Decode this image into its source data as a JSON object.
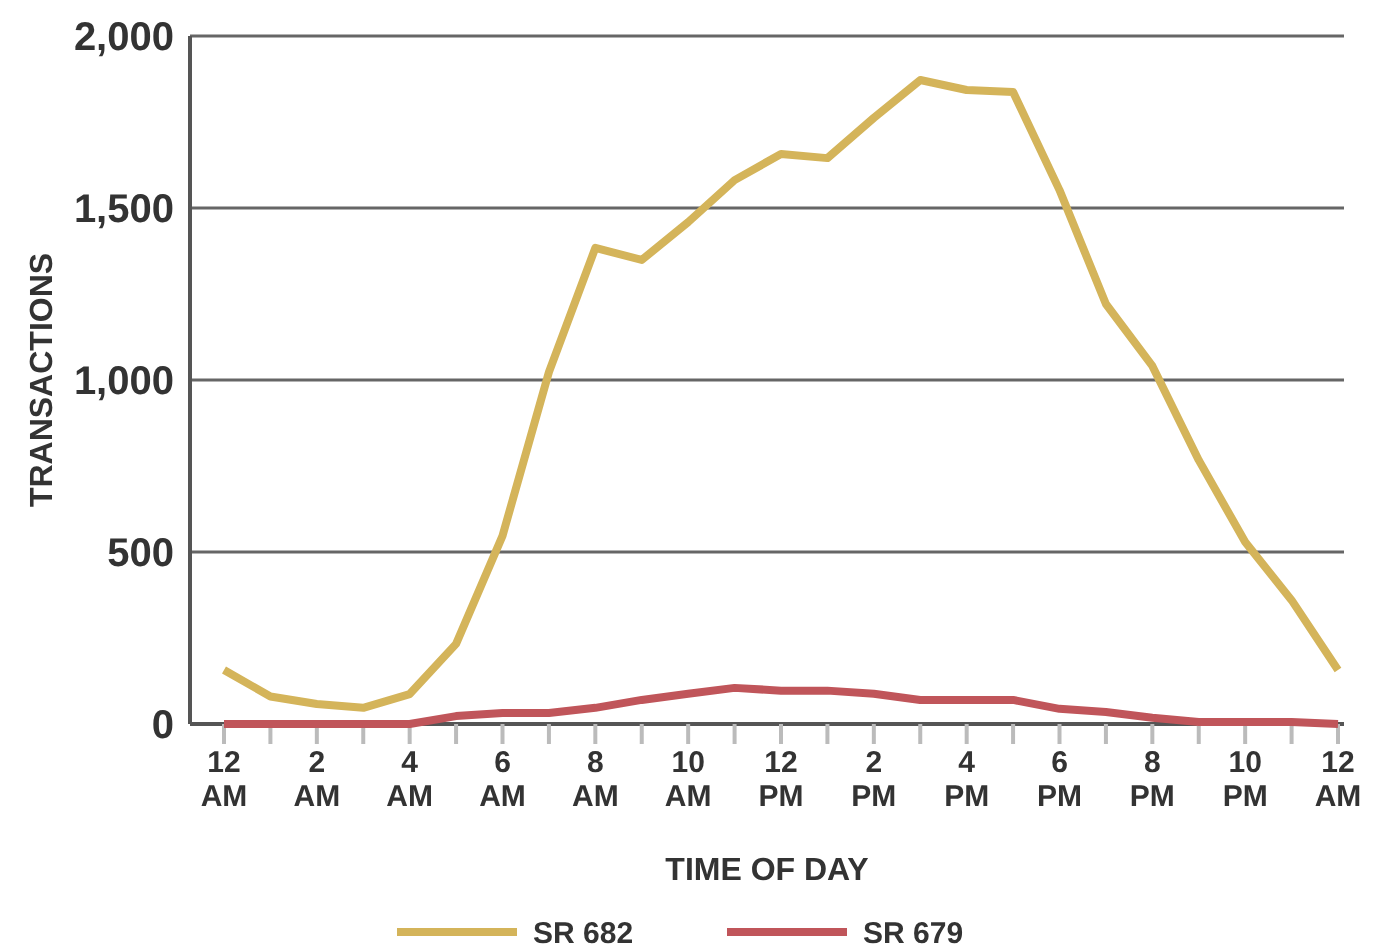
{
  "chart_data": {
    "type": "line",
    "xlabel": "TIME OF DAY",
    "ylabel": "TRANSACTIONS",
    "categories": [
      "12 AM",
      null,
      "2 AM",
      null,
      "4 AM",
      null,
      "6 AM",
      null,
      "8 AM",
      null,
      "10 AM",
      null,
      "12 PM",
      null,
      "2 PM",
      null,
      "4 PM",
      null,
      "6 PM",
      null,
      "8 PM",
      null,
      "10 PM",
      null,
      "12 AM"
    ],
    "ylim": [
      0,
      2000
    ],
    "yticks": [
      0,
      500,
      {
        "value": 1000,
        "label": "1,000"
      },
      {
        "value": 1500,
        "label": "1,500"
      },
      {
        "value": 2000,
        "label": "2,000"
      }
    ],
    "grid": "y",
    "legend": "bottom",
    "marker": "none",
    "line_style": "solid",
    "series": [
      {
        "name": "SR 682",
        "color": "#d4b45a",
        "values": [
          157,
          80,
          58,
          47,
          87,
          233,
          547,
          1023,
          1384,
          1349,
          1459,
          1581,
          1657,
          1645,
          1762,
          1872,
          1843,
          1837,
          1552,
          1221,
          1041,
          767,
          529,
          360,
          157
        ]
      },
      {
        "name": "SR 679",
        "color": "#c0555a",
        "values": [
          0,
          0,
          0,
          0,
          0,
          23,
          32,
          32,
          47,
          70,
          88,
          105,
          97,
          97,
          88,
          70,
          70,
          70,
          44,
          35,
          18,
          6,
          6,
          6,
          0
        ]
      }
    ]
  }
}
